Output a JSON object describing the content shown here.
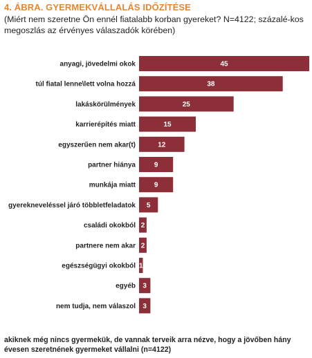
{
  "chart_data": {
    "type": "bar",
    "orientation": "horizontal",
    "title": "4. ÁBRA. GYERMEKVÁLLALÁS IDŐZÍTÉSE",
    "subtitle": "(Miért nem szeretne Ön ennél fiatalabb korban gyereket? N=4122; százalé-kos megoszlás az érvényes válaszadók körében)",
    "note": "akiknek még nincs gyermekük, de vannak terveik arra nézve, hogy a jövőben hány évesen szeretnének gyermeket vállalni (n=4122)",
    "categories": [
      "anyagi, jövedelmi okok",
      "túl fiatal lenne\\lett volna hozzá",
      "lakáskörülmények",
      "karrierépítés miatt",
      "egyszerűen nem akar(t)",
      "partner hiánya",
      "munkája miatt",
      "gyereknevelés­sel járó többletfeladatok",
      "családi okokból",
      "partnere nem akar",
      "egészségügyi okokból",
      "egyéb",
      "nem tudja, nem válaszol"
    ],
    "values": [
      45,
      38,
      25,
      15,
      12,
      9,
      9,
      5,
      2,
      2,
      1,
      3,
      3
    ],
    "value_labels": [
      "45",
      "38",
      "25",
      "15",
      "12",
      "9",
      "9",
      "5",
      "2",
      "2",
      "1",
      "3",
      "3"
    ],
    "xlim": [
      0,
      45
    ],
    "grid": false,
    "legend": "none",
    "bar_color": "#8c2f39",
    "title_color": "#e8862e"
  }
}
